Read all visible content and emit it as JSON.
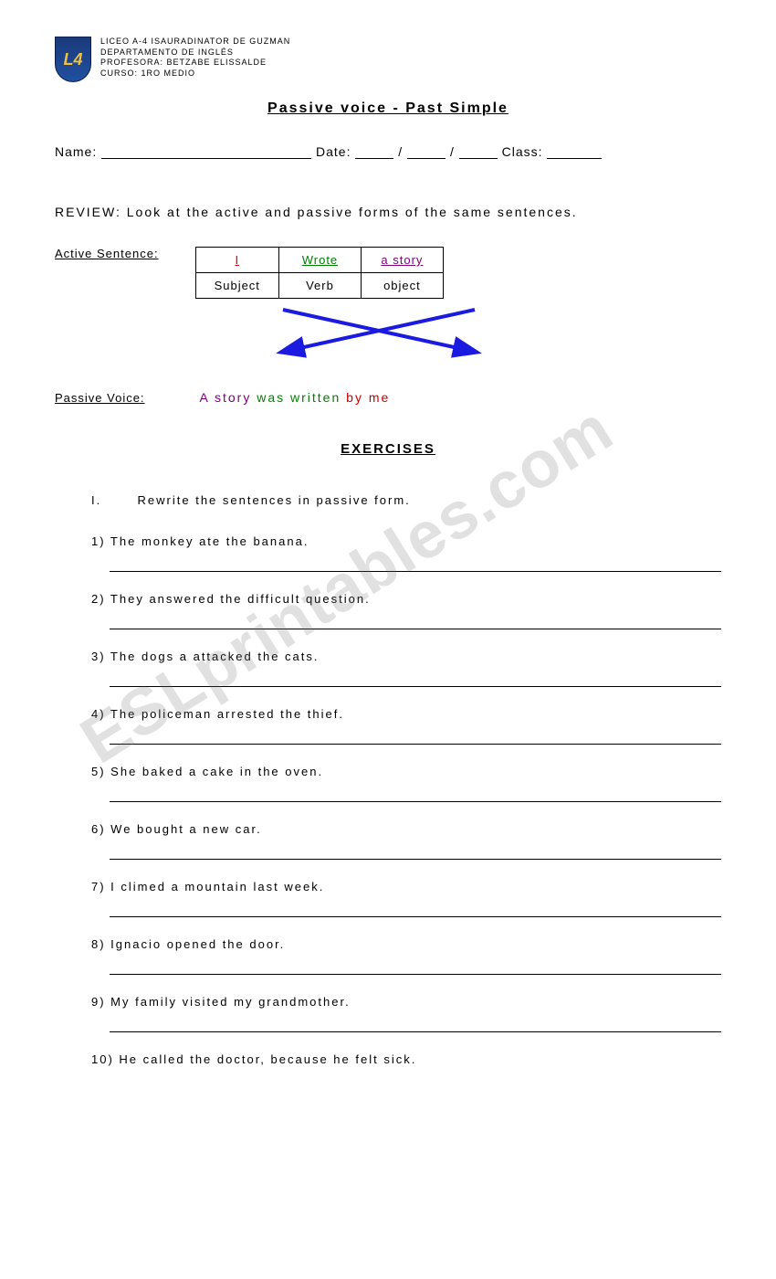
{
  "school": {
    "logo_text": "L4",
    "line1": "LICEO A-4 ISAURADINATOR DE GUZMAN",
    "line2": "DEPARTAMENTO DE INGLÉS",
    "line3": "PROFESORA: BETZABE ELISSALDE",
    "line4": "CURSO: 1RO MEDIO"
  },
  "title": "Passive  voice  -  Past  Simple",
  "fields": {
    "name_label": "Name:",
    "date_label": "Date:",
    "class_label": "Class:",
    "slash": "/"
  },
  "review": "REVIEW:  Look  at  the  active  and  passive  forms  of  the  same  sentences.",
  "active_label": "Active   Sentence:",
  "passive_label": "Passive  Voice:",
  "table": {
    "r1c1": "I",
    "r1c2": "Wrote",
    "r1c3": "a   story",
    "r2c1": "Subject",
    "r2c2": "Verb",
    "r2c3": "object"
  },
  "passive_sentence": {
    "p1": "A   story",
    "p2": "was   written",
    "p3": "by",
    "p4": "me"
  },
  "exercises_title": "EXERCISES",
  "instruction_num": "I.",
  "instruction": "Rewrite  the  sentences  in  passive  form.",
  "questions": [
    "1)   The  monkey  ate  the  banana.",
    "2)   They  answered  the  difficult  question.",
    "3)   The  dogs  a  attacked  the  cats.",
    "4)   The  policeman  arrested  the  thief.",
    "5)   She  baked  a  cake  in  the  oven.",
    "6)   We  bought  a  new  car.",
    "7)   I  climed  a  mountain  last  week.",
    "8)   Ignacio  opened  the  door.",
    "9)   My  family  visited  my  grandmother.",
    "10) He  called  the  doctor,  because  he  felt  sick."
  ],
  "watermark": "ESLprintables.com",
  "colors": {
    "arrow": "#1a1ae0",
    "red": "#cc0000",
    "green": "#008000",
    "purple": "#800080",
    "logo_bg": "#1a3a7a",
    "logo_text": "#f0c040"
  }
}
